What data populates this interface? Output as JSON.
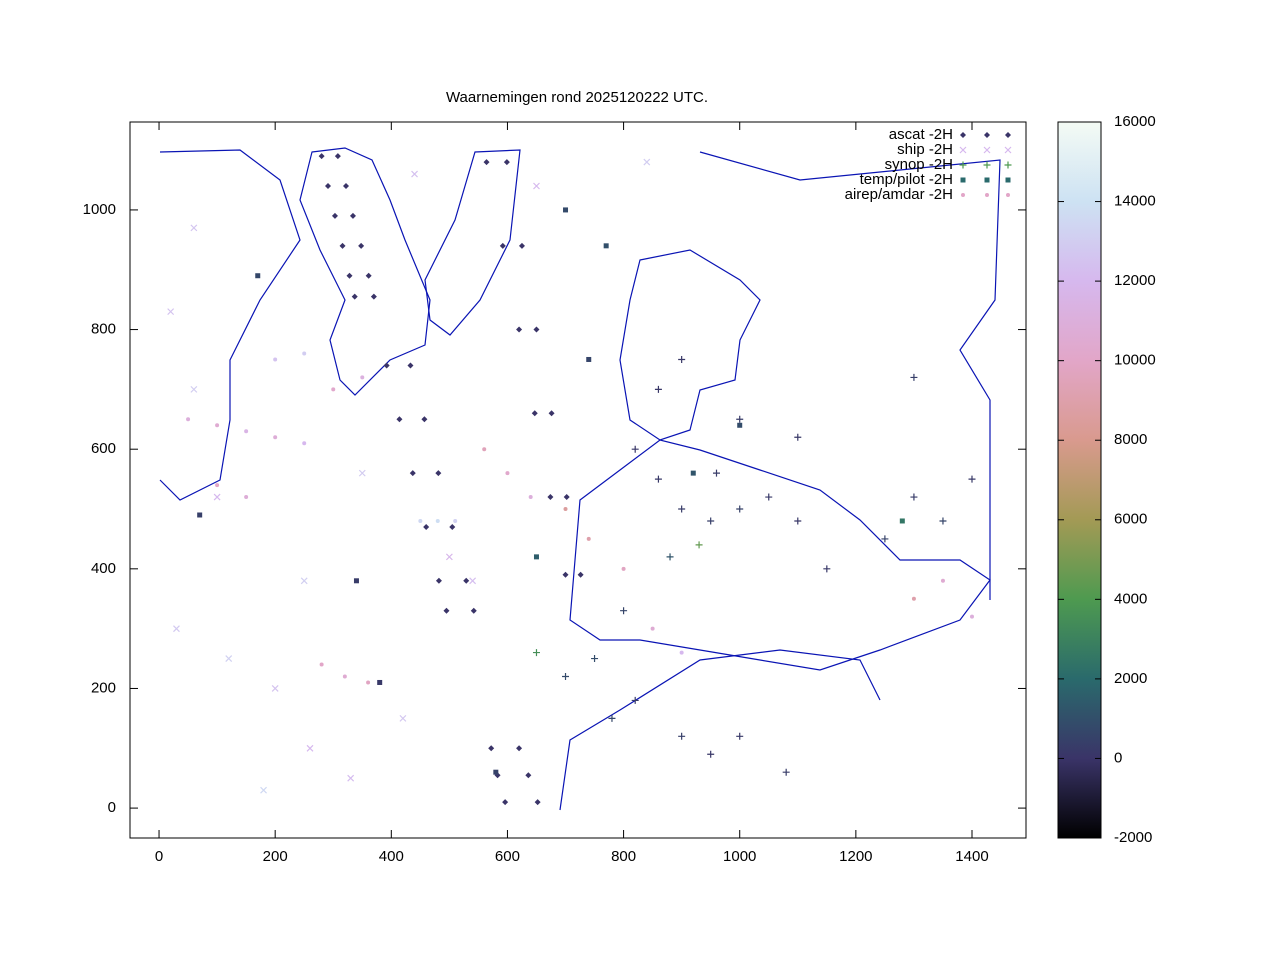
{
  "chart_data": {
    "type": "scatter",
    "title": "Waarnemingen rond 2025120222 UTC.",
    "xlim": [
      -50,
      1493
    ],
    "ylim": [
      -50,
      1147
    ],
    "xticks": [
      0,
      200,
      400,
      600,
      800,
      1000,
      1200,
      1400
    ],
    "yticks": [
      0,
      200,
      400,
      600,
      800,
      1000
    ],
    "clim": [
      -2000,
      16000
    ],
    "cticks": [
      -2000,
      0,
      2000,
      4000,
      6000,
      8000,
      10000,
      12000,
      14000,
      16000
    ],
    "colormap": [
      {
        "value": -2000,
        "color": "#000000"
      },
      {
        "value": 0,
        "color": "#3a3468"
      },
      {
        "value": 2000,
        "color": "#2a6a6c"
      },
      {
        "value": 4000,
        "color": "#4e9a50"
      },
      {
        "value": 6000,
        "color": "#a39a55"
      },
      {
        "value": 8000,
        "color": "#d99a8e"
      },
      {
        "value": 10000,
        "color": "#e2a6c8"
      },
      {
        "value": 12000,
        "color": "#d6b8ee"
      },
      {
        "value": 14000,
        "color": "#cde2f3"
      },
      {
        "value": 16000,
        "color": "#f4fbf4"
      }
    ],
    "legend": "top-right",
    "series": [
      {
        "name": "ascat -2H",
        "marker": "diamond",
        "color": "#3a3468",
        "x": [
          280,
          308,
          291,
          322,
          303,
          334,
          316,
          348,
          328,
          361,
          337,
          370,
          564,
          599,
          592,
          625,
          620,
          650,
          647,
          676,
          674,
          702,
          700,
          726,
          392,
          433,
          414,
          457,
          437,
          481,
          460,
          505,
          482,
          529,
          495,
          542,
          572,
          620,
          583,
          636,
          596,
          652
        ],
        "y": [
          1090,
          1090,
          1040,
          1040,
          990,
          990,
          940,
          940,
          890,
          890,
          855,
          855,
          1080,
          1080,
          940,
          940,
          800,
          800,
          660,
          660,
          520,
          520,
          390,
          390,
          740,
          740,
          650,
          650,
          560,
          560,
          470,
          470,
          380,
          380,
          330,
          330,
          100,
          100,
          55,
          55,
          10,
          10
        ],
        "z": [
          0,
          0,
          0,
          0,
          0,
          0,
          0,
          0,
          0,
          0,
          0,
          0,
          0,
          0,
          0,
          0,
          0,
          0,
          0,
          0,
          0,
          0,
          0,
          0,
          0,
          0,
          0,
          0,
          0,
          0,
          0,
          0,
          0,
          0,
          0,
          0,
          0,
          0,
          0,
          0,
          0,
          0
        ]
      },
      {
        "name": "ship -2H",
        "marker": "cross",
        "color": "#d6b8ee",
        "x": [
          20,
          60,
          100,
          30,
          120,
          200,
          260,
          180,
          330,
          420,
          500,
          540,
          350,
          250,
          60,
          440,
          650,
          840
        ],
        "y": [
          830,
          700,
          520,
          300,
          250,
          200,
          100,
          30,
          50,
          150,
          420,
          380,
          560,
          380,
          970,
          1060,
          1040,
          1080
        ],
        "z": [
          12500,
          13000,
          12000,
          12800,
          13200,
          12500,
          12000,
          13500,
          12200,
          12700,
          11800,
          12300,
          12900,
          13100,
          12600,
          12400,
          12000,
          13000
        ]
      },
      {
        "name": "synop -2H",
        "marker": "plus",
        "color": "#4e9a50",
        "x": [
          820,
          860,
          900,
          950,
          1000,
          1050,
          1100,
          880,
          930,
          960,
          800,
          750,
          820,
          900,
          950,
          1000,
          1080,
          1150,
          1250,
          1300,
          1350,
          1400,
          860,
          900,
          1000,
          1100,
          1300,
          780,
          700,
          650
        ],
        "y": [
          600,
          550,
          500,
          480,
          500,
          520,
          480,
          420,
          440,
          560,
          330,
          250,
          180,
          120,
          90,
          120,
          60,
          400,
          450,
          520,
          480,
          550,
          700,
          750,
          650,
          620,
          720,
          150,
          220,
          260
        ],
        "z": [
          100,
          200,
          300,
          400,
          500,
          200,
          150,
          1200,
          4500,
          300,
          600,
          900,
          250,
          400,
          100,
          200,
          300,
          150,
          500,
          300,
          600,
          200,
          100,
          150,
          250,
          180,
          400,
          700,
          800,
          3500
        ]
      },
      {
        "name": "temp/pilot -2H",
        "marker": "square",
        "color": "#2a6a6c",
        "x": [
          700,
          770,
          740,
          650,
          580,
          380,
          340,
          70,
          170,
          920,
          1000,
          1280
        ],
        "y": [
          1000,
          940,
          750,
          420,
          60,
          210,
          380,
          490,
          890,
          560,
          640,
          480
        ],
        "z": [
          800,
          1000,
          600,
          1500,
          500,
          200,
          300,
          400,
          700,
          1200,
          900,
          2500
        ]
      },
      {
        "name": "airep/amdar -2H",
        "marker": "dot",
        "color": "#e2a6c8",
        "x": [
          50,
          100,
          150,
          200,
          250,
          300,
          350,
          200,
          250,
          100,
          150,
          450,
          480,
          510,
          280,
          320,
          360,
          560,
          600,
          640,
          700,
          740,
          800,
          850,
          900,
          1300,
          1350,
          1400
        ],
        "y": [
          650,
          640,
          630,
          620,
          610,
          700,
          720,
          750,
          760,
          540,
          520,
          480,
          480,
          480,
          240,
          220,
          210,
          600,
          560,
          520,
          500,
          450,
          400,
          300,
          260,
          350,
          380,
          320
        ],
        "z": [
          11000,
          10500,
          11500,
          10800,
          12000,
          10200,
          11200,
          12500,
          13000,
          10000,
          10800,
          13500,
          13800,
          13200,
          10000,
          10500,
          9800,
          9500,
          10200,
          11000,
          8500,
          9000,
          9800,
          10600,
          12000,
          9000,
          10500,
          11000
        ]
      }
    ]
  }
}
